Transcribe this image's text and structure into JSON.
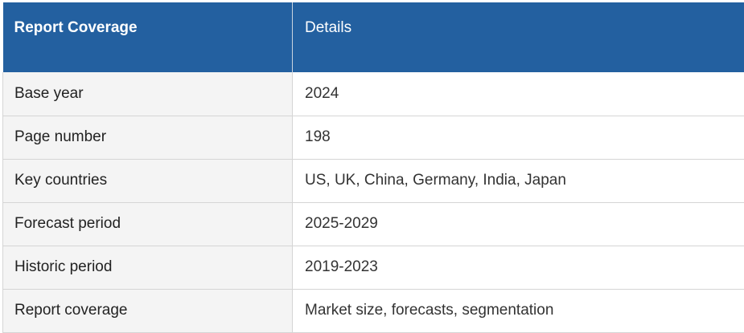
{
  "table": {
    "header": {
      "coverage": "Report Coverage",
      "details": "Details"
    },
    "rows": [
      {
        "label": "Base year",
        "value": "2024"
      },
      {
        "label": "Page number",
        "value": "198"
      },
      {
        "label": "Key countries",
        "value": "US, UK, China, Germany, India, Japan"
      },
      {
        "label": "Forecast period",
        "value": "2025-2029"
      },
      {
        "label": "Historic period",
        "value": "2019-2023"
      },
      {
        "label": "Report coverage",
        "value": "Market size, forecasts, segmentation"
      }
    ]
  },
  "colors": {
    "header_bg": "#2360a0",
    "header_text": "#ffffff",
    "label_bg": "#f4f4f4",
    "border": "#d5d5d5"
  }
}
